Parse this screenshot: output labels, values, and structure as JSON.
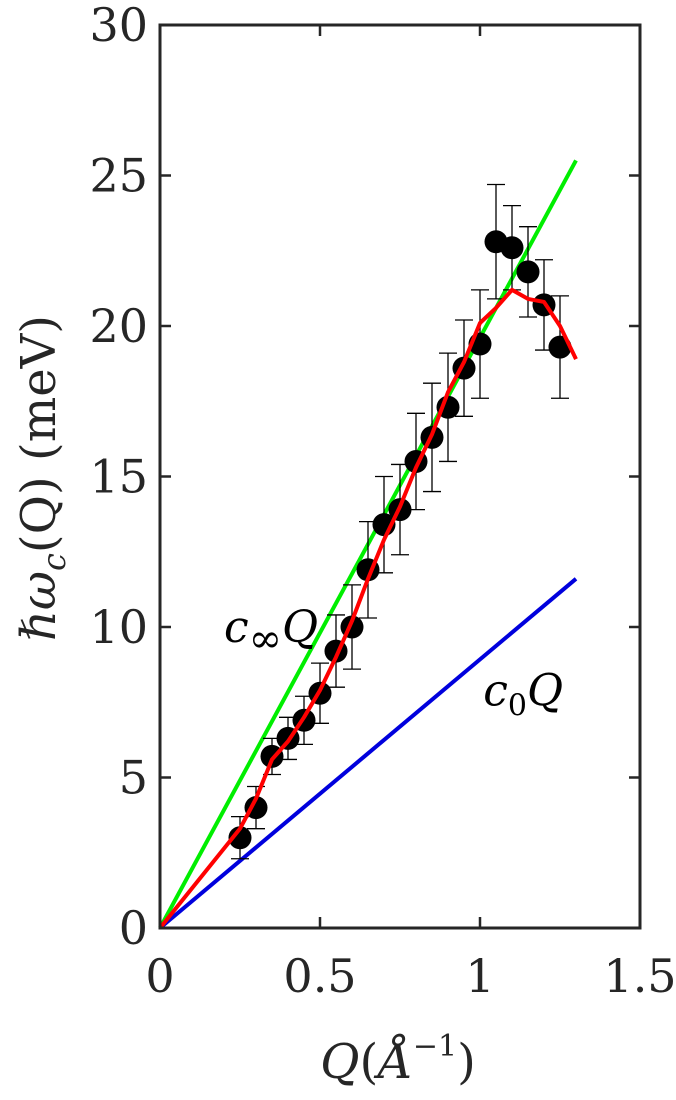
{
  "chart_data": {
    "type": "scatter",
    "xlabel_main": "Q",
    "xlabel_paren_open": "(",
    "xlabel_angstrom": "Å",
    "xlabel_exp": "−1",
    "xlabel_paren_close": ")",
    "ylabel_prefix": "ℏω",
    "ylabel_sub": "c",
    "ylabel_suffix": "(Q) (meV)",
    "xlim": [
      0,
      1.5
    ],
    "ylim": [
      0,
      30
    ],
    "xticks": [
      "0",
      "0.5",
      "1",
      "1.5"
    ],
    "xtick_values": [
      0,
      0.5,
      1,
      1.5
    ],
    "yticks": [
      "0",
      "5",
      "10",
      "15",
      "20",
      "25",
      "30"
    ],
    "ytick_values": [
      0,
      5,
      10,
      15,
      20,
      25,
      30
    ],
    "grid": false,
    "colors": {
      "data": "#000000",
      "fit": "#ff0000",
      "c_inf": "#00ee00",
      "c_0": "#0000dd",
      "axes": "#262626"
    },
    "series": [
      {
        "kind": "points_with_errorbars",
        "x": [
          0.25,
          0.3,
          0.35,
          0.4,
          0.45,
          0.5,
          0.55,
          0.6,
          0.65,
          0.7,
          0.75,
          0.8,
          0.85,
          0.9,
          0.95,
          1.0,
          1.05,
          1.1,
          1.15,
          1.2,
          1.25
        ],
        "y": [
          3.0,
          4.0,
          5.7,
          6.3,
          6.9,
          7.8,
          9.2,
          10.0,
          11.9,
          13.4,
          13.9,
          15.5,
          16.3,
          17.3,
          18.6,
          19.4,
          22.8,
          22.6,
          21.8,
          20.7,
          19.3
        ],
        "yerr": [
          0.7,
          0.7,
          0.6,
          0.7,
          0.8,
          1.0,
          1.2,
          1.4,
          1.6,
          1.6,
          1.5,
          1.6,
          1.8,
          1.8,
          1.6,
          1.8,
          1.9,
          1.4,
          1.5,
          1.5,
          1.7
        ]
      },
      {
        "kind": "line",
        "x": [
          0,
          0.25,
          0.3,
          0.35,
          0.4,
          0.45,
          0.5,
          0.55,
          0.6,
          0.65,
          0.7,
          0.75,
          0.8,
          0.85,
          0.9,
          0.95,
          1.0,
          1.05,
          1.1,
          1.15,
          1.2,
          1.25,
          1.3
        ],
        "y": [
          0,
          3.3,
          4.3,
          5.6,
          6.2,
          7.0,
          7.9,
          9.0,
          10.2,
          11.6,
          12.9,
          14.0,
          15.3,
          16.4,
          17.8,
          18.8,
          20.1,
          20.6,
          21.2,
          20.9,
          20.8,
          20.0,
          18.9
        ]
      },
      {
        "kind": "line",
        "x": [
          0,
          1.3
        ],
        "y": [
          0,
          25.5
        ]
      },
      {
        "kind": "line",
        "x": [
          0,
          1.3
        ],
        "y": [
          0,
          11.6
        ]
      }
    ],
    "annotations": [
      {
        "base": "c",
        "sub": "∞",
        "tail": "Q",
        "x": 0.2,
        "y": 9.5
      },
      {
        "base": "c",
        "sub": "0",
        "tail": "Q",
        "x": 1.01,
        "y": 7.4
      }
    ]
  }
}
